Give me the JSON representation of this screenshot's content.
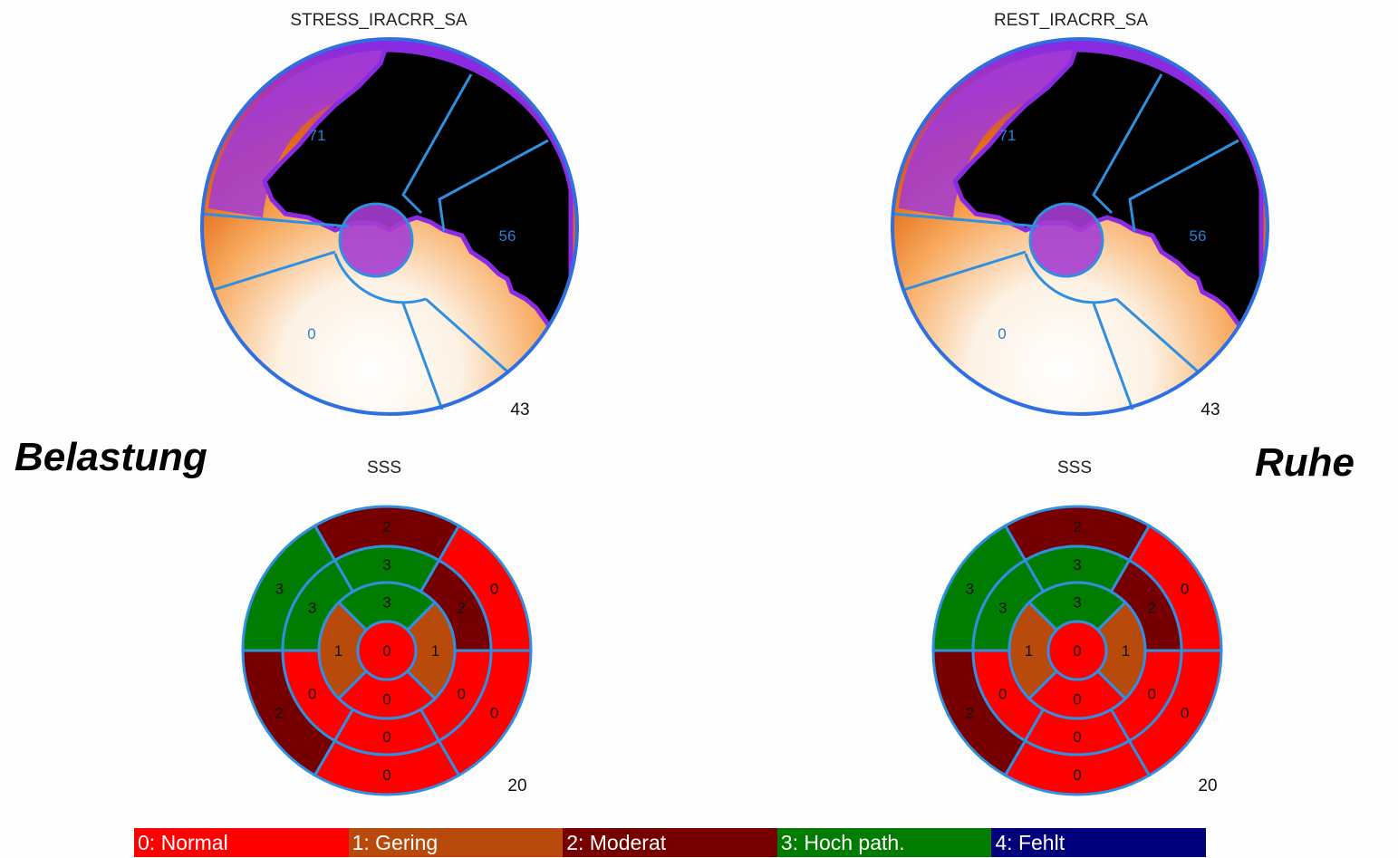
{
  "stress": {
    "title": "STRESS_IRACRR_SA",
    "regions": {
      "top": "71",
      "right": "56",
      "lower": "0"
    },
    "total": "43",
    "score_title": "SSS",
    "score_total": "20",
    "label": "Belastung"
  },
  "rest": {
    "title": "REST_IRACRR_SA",
    "regions": {
      "top": "71",
      "right": "56",
      "lower": "0"
    },
    "total": "43",
    "score_title": "SSS",
    "score_total": "20",
    "label": "Ruhe"
  },
  "segment_scores": {
    "apex": 0,
    "apical": [
      3,
      1,
      0,
      1
    ],
    "mid": [
      3,
      3,
      0,
      0,
      0,
      2
    ],
    "basal": [
      2,
      3,
      2,
      0,
      0,
      0
    ]
  },
  "colors": {
    "0": "#ff0000",
    "1": "#b84a0c",
    "2": "#760000",
    "3": "#007d00",
    "4": "#00007a",
    "border": "#2f8fe0"
  },
  "legend": [
    {
      "label": "0: Normal",
      "color": "#ff0000"
    },
    {
      "label": "1: Gering",
      "color": "#b84a0c"
    },
    {
      "label": "2: Moderat",
      "color": "#760000"
    },
    {
      "label": "3: Hoch path.",
      "color": "#007d00"
    },
    {
      "label": "4: Fehlt",
      "color": "#00007a"
    }
  ]
}
